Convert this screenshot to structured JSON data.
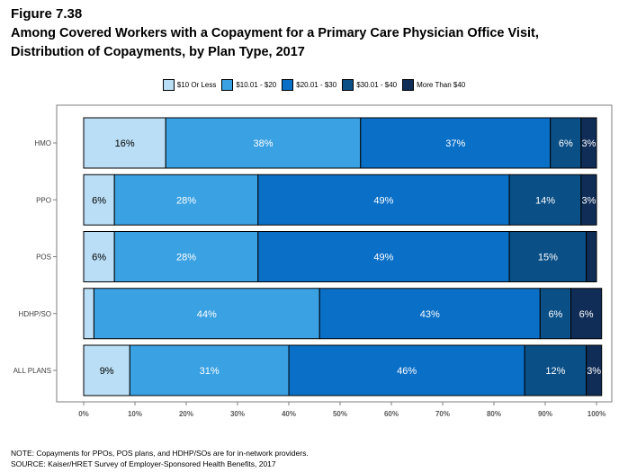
{
  "figure_label": "Figure 7.38",
  "title_line1": "Among Covered Workers with a Copayment for a Primary Care Physician Office Visit,",
  "title_line2": "Distribution of Copayments, by Plan Type, 2017",
  "note": "NOTE: Copayments for PPOs, POS plans, and HDHP/SOs are for in-network providers.",
  "source": "SOURCE: Kaiser/HRET Survey of Employer-Sponsored Health Benefits, 2017",
  "colors": [
    "#b9def5",
    "#3aa1e3",
    "#0a6fc7",
    "#0a4f86",
    "#0f2d57"
  ],
  "chart_data": {
    "type": "bar",
    "orientation": "horizontal",
    "stacked": true,
    "title": "Among Covered Workers with a Copayment for a Primary Care Physician Office Visit, Distribution of Copayments, by Plan Type, 2017",
    "categories": [
      "HMO",
      "PPO",
      "POS",
      "HDHP/SO",
      "ALL PLANS"
    ],
    "series": [
      {
        "name": "$10 Or Less",
        "values": [
          16,
          6,
          6,
          2,
          9
        ],
        "labels": [
          "16%",
          "6%",
          "6%",
          "",
          "9%"
        ]
      },
      {
        "name": "$10.01 - $20",
        "values": [
          38,
          28,
          28,
          44,
          31
        ],
        "labels": [
          "38%",
          "28%",
          "28%",
          "44%",
          "31%"
        ]
      },
      {
        "name": "$20.01 - $30",
        "values": [
          37,
          49,
          49,
          43,
          46
        ],
        "labels": [
          "37%",
          "49%",
          "49%",
          "43%",
          "46%"
        ]
      },
      {
        "name": "$30.01 - $40",
        "values": [
          6,
          14,
          15,
          6,
          12
        ],
        "labels": [
          "6%",
          "14%",
          "15%",
          "6%",
          "12%"
        ]
      },
      {
        "name": "More Than $40",
        "values": [
          3,
          3,
          2,
          6,
          3
        ],
        "labels": [
          "3%",
          "3%",
          "",
          "6%",
          "3%"
        ]
      }
    ],
    "xlim": [
      0,
      100
    ],
    "xticks": [
      "0%",
      "10%",
      "20%",
      "30%",
      "40%",
      "50%",
      "60%",
      "70%",
      "80%",
      "90%",
      "100%"
    ],
    "legend_position": "top",
    "grid": false
  }
}
